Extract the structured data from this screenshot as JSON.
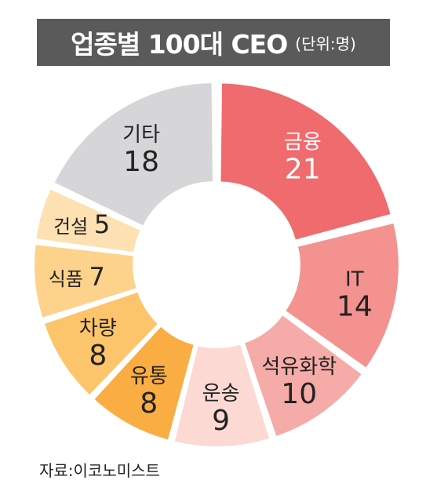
{
  "title": "업종별 100대 CEO",
  "unit": "(단위:명)",
  "source": "자료:이코노미스트",
  "chart_data": {
    "type": "pie",
    "title": "업종별 100대 CEO",
    "categories": [
      "금융",
      "IT",
      "석유화학",
      "운송",
      "유통",
      "차량",
      "식품",
      "건설",
      "기타"
    ],
    "values": [
      21,
      14,
      10,
      9,
      8,
      8,
      7,
      5,
      18
    ],
    "colors": [
      "#ef6b6e",
      "#f3928f",
      "#f5aba7",
      "#fcd9d2",
      "#f9ad43",
      "#fcc56c",
      "#fdd28a",
      "#fee1b3",
      "#d6d6d9"
    ],
    "label_color": [
      "#ffffff",
      "#222222",
      "#222222",
      "#222222",
      "#222222",
      "#222222",
      "#222222",
      "#222222",
      "#222222"
    ],
    "label_style": [
      "stacked",
      "stacked",
      "stacked",
      "stacked",
      "stacked",
      "stacked",
      "inline",
      "inline",
      "stacked"
    ],
    "donut": true
  }
}
